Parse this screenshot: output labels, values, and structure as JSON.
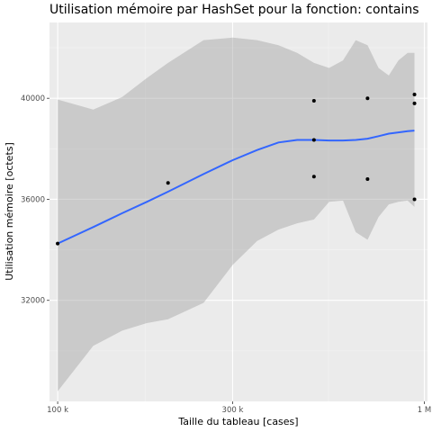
{
  "chart_data": {
    "type": "scatter",
    "title": "Utilisation mémoire par HashSet pour la fonction: contains",
    "xlabel": "Taille du tableau [cases]",
    "ylabel": "Utilisation mémoire [octets]",
    "x_scale": "log10",
    "xlim": [
      95000,
      1020000
    ],
    "ylim": [
      28000,
      43000
    ],
    "x_ticks": [
      100000,
      300000,
      1000000
    ],
    "x_tick_labels": [
      "100 k",
      "300 k",
      "1 M"
    ],
    "y_ticks": [
      32000,
      36000,
      40000
    ],
    "y_tick_labels": [
      "32000",
      "36000",
      "40000"
    ],
    "grid": true,
    "points": [
      {
        "x": 100000,
        "y": 34250
      },
      {
        "x": 200000,
        "y": 36650
      },
      {
        "x": 500000,
        "y": 39900
      },
      {
        "x": 500000,
        "y": 38350
      },
      {
        "x": 500000,
        "y": 36900
      },
      {
        "x": 700000,
        "y": 40000
      },
      {
        "x": 700000,
        "y": 36800
      },
      {
        "x": 940000,
        "y": 40150
      },
      {
        "x": 940000,
        "y": 39800
      },
      {
        "x": 940000,
        "y": 36000
      }
    ],
    "smooth": {
      "color": "#3366ff",
      "x": [
        100000,
        125000,
        150000,
        175000,
        200000,
        250000,
        300000,
        350000,
        400000,
        450000,
        500000,
        550000,
        600000,
        650000,
        700000,
        750000,
        800000,
        850000,
        900000,
        940000
      ],
      "y": [
        34250,
        34900,
        35450,
        35900,
        36300,
        37000,
        37550,
        37950,
        38250,
        38350,
        38350,
        38330,
        38330,
        38350,
        38400,
        38500,
        38600,
        38650,
        38700,
        38720
      ],
      "ymin": [
        28400,
        30200,
        30800,
        31100,
        31250,
        31900,
        33400,
        34350,
        34800,
        35050,
        35200,
        35900,
        35950,
        34700,
        34400,
        35300,
        35800,
        35900,
        35950,
        35700
      ],
      "ymax": [
        39950,
        39550,
        40050,
        40800,
        41400,
        42300,
        42400,
        42300,
        42100,
        41800,
        41400,
        41200,
        41500,
        42300,
        42100,
        41200,
        40900,
        41500,
        41800,
        41800
      ]
    }
  }
}
